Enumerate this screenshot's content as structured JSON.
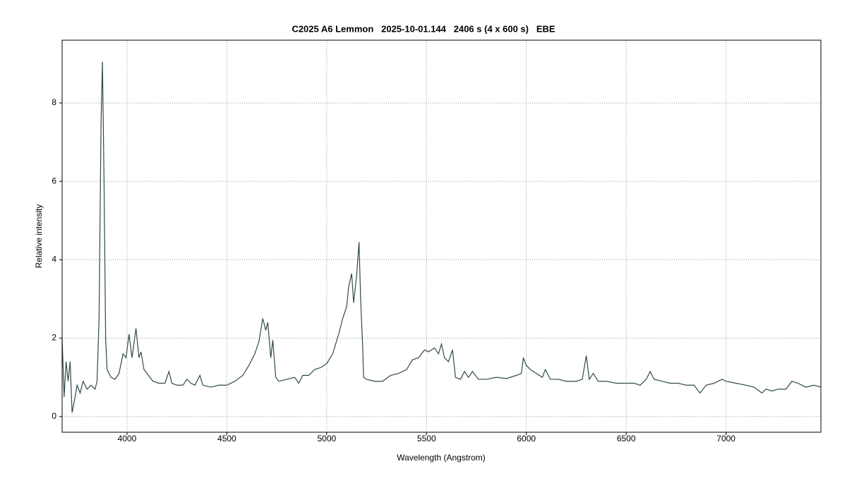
{
  "chart_data": {
    "type": "line",
    "title": "C2025 A6 Lemmon   2025-10-01.144   2406 s (4 x 600 s)   EBE",
    "xlabel": "Wavelength (Angstrom)",
    "ylabel": "Relative intensity",
    "xlim": [
      3675,
      7475
    ],
    "ylim": [
      -0.4,
      9.6
    ],
    "xticks": [
      4000,
      4500,
      5000,
      5500,
      6000,
      6500,
      7000
    ],
    "yticks": [
      0,
      2,
      4,
      6,
      8
    ],
    "grid": true,
    "series": [
      {
        "color": "#2f4a4a",
        "x": [
          3675,
          3685,
          3695,
          3705,
          3715,
          3725,
          3740,
          3750,
          3765,
          3780,
          3800,
          3820,
          3840,
          3850,
          3860,
          3870,
          3877,
          3885,
          3893,
          3900,
          3920,
          3940,
          3960,
          3980,
          3995,
          4010,
          4025,
          4045,
          4060,
          4070,
          4085,
          4100,
          4130,
          4160,
          4190,
          4210,
          4225,
          4250,
          4280,
          4300,
          4320,
          4340,
          4365,
          4380,
          4420,
          4460,
          4500,
          4540,
          4580,
          4610,
          4640,
          4660,
          4680,
          4695,
          4705,
          4720,
          4730,
          4745,
          4760,
          4800,
          4840,
          4860,
          4880,
          4910,
          4940,
          4970,
          5000,
          5030,
          5060,
          5080,
          5100,
          5110,
          5125,
          5135,
          5150,
          5162,
          5170,
          5180,
          5185,
          5200,
          5240,
          5280,
          5320,
          5360,
          5400,
          5430,
          5460,
          5490,
          5510,
          5540,
          5560,
          5575,
          5590,
          5610,
          5630,
          5645,
          5670,
          5690,
          5710,
          5730,
          5760,
          5800,
          5850,
          5900,
          5950,
          5975,
          5985,
          6000,
          6020,
          6050,
          6080,
          6095,
          6120,
          6160,
          6200,
          6250,
          6280,
          6300,
          6315,
          6335,
          6360,
          6400,
          6450,
          6500,
          6540,
          6570,
          6600,
          6620,
          6640,
          6680,
          6720,
          6760,
          6800,
          6840,
          6870,
          6900,
          6940,
          6980,
          7000,
          7050,
          7100,
          7140,
          7180,
          7200,
          7230,
          7260,
          7300,
          7330,
          7360,
          7400,
          7440,
          7475
        ],
        "values": [
          2.0,
          0.5,
          1.4,
          0.9,
          1.4,
          0.1,
          0.5,
          0.8,
          0.6,
          0.9,
          0.7,
          0.8,
          0.7,
          0.9,
          2.5,
          7.5,
          9.05,
          6.0,
          2.0,
          1.2,
          1.0,
          0.95,
          1.1,
          1.6,
          1.5,
          2.1,
          1.5,
          2.25,
          1.5,
          1.65,
          1.2,
          1.1,
          0.9,
          0.85,
          0.85,
          1.15,
          0.85,
          0.8,
          0.8,
          0.95,
          0.85,
          0.8,
          1.05,
          0.8,
          0.75,
          0.8,
          0.8,
          0.9,
          1.05,
          1.3,
          1.6,
          1.9,
          2.5,
          2.2,
          2.4,
          1.5,
          1.95,
          1.0,
          0.9,
          0.95,
          1.0,
          0.85,
          1.05,
          1.05,
          1.2,
          1.25,
          1.35,
          1.6,
          2.1,
          2.5,
          2.8,
          3.3,
          3.65,
          2.9,
          3.6,
          4.45,
          3.0,
          1.8,
          1.0,
          0.95,
          0.9,
          0.9,
          1.05,
          1.1,
          1.2,
          1.45,
          1.5,
          1.7,
          1.65,
          1.75,
          1.6,
          1.85,
          1.5,
          1.4,
          1.7,
          1.0,
          0.95,
          1.15,
          1.0,
          1.15,
          0.95,
          0.95,
          1.0,
          0.97,
          1.05,
          1.1,
          1.5,
          1.3,
          1.2,
          1.1,
          1.0,
          1.2,
          0.95,
          0.95,
          0.9,
          0.9,
          0.95,
          1.55,
          0.95,
          1.1,
          0.9,
          0.9,
          0.85,
          0.85,
          0.85,
          0.8,
          0.95,
          1.15,
          0.95,
          0.9,
          0.85,
          0.85,
          0.8,
          0.8,
          0.6,
          0.8,
          0.85,
          0.95,
          0.9,
          0.85,
          0.8,
          0.75,
          0.6,
          0.7,
          0.65,
          0.7,
          0.7,
          0.9,
          0.85,
          0.75,
          0.8,
          0.75
        ]
      }
    ]
  }
}
